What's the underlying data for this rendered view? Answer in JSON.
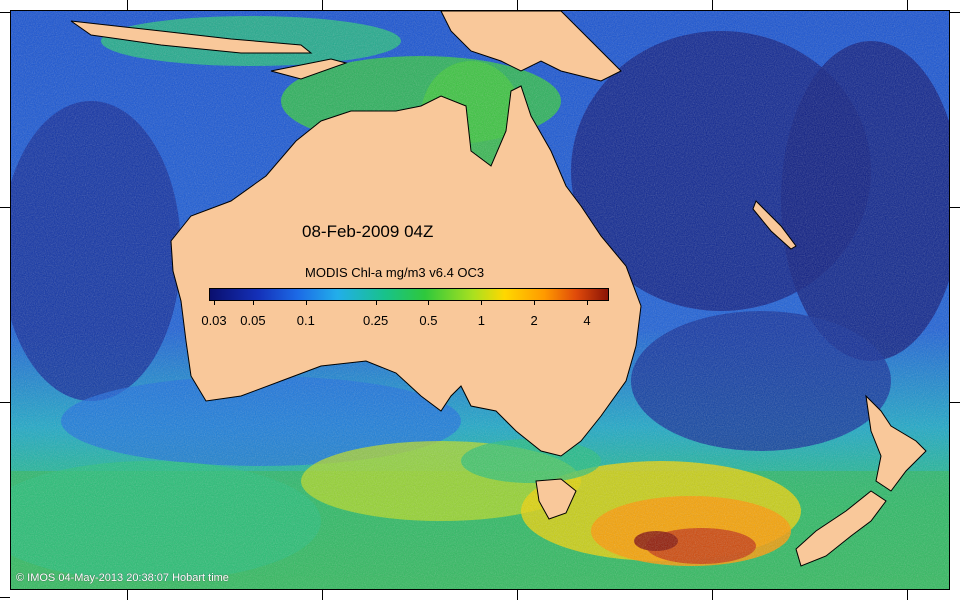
{
  "map": {
    "date_label": "08-Feb-2009 04Z",
    "colorbar_title": "MODIS Chl-a mg/m3 v6.4 OC3",
    "colorbar_ticks": [
      {
        "label": "0.03",
        "value": 0.03
      },
      {
        "label": "0.05",
        "value": 0.05
      },
      {
        "label": "0.1",
        "value": 0.1
      },
      {
        "label": "0.25",
        "value": 0.25
      },
      {
        "label": "0.5",
        "value": 0.5
      },
      {
        "label": "1",
        "value": 1
      },
      {
        "label": "2",
        "value": 2
      },
      {
        "label": "4",
        "value": 4
      }
    ],
    "copyright": "© IMOS 04-May-2013 20:38:07 Hobart time",
    "colors": {
      "land": "#f9c89a",
      "ocean_low": "#0a1e8c",
      "ocean_mid": "#1c6ae6",
      "ocean_shelf": "#18c28a",
      "bloom": "#ff9a00",
      "bloom_high": "#8a1406"
    }
  }
}
